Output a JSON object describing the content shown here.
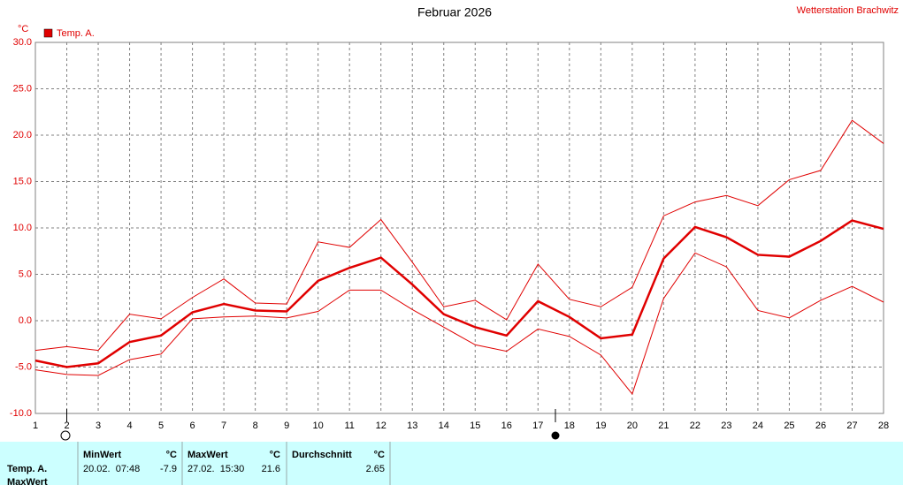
{
  "chart_data": {
    "type": "line",
    "title": "Februar 2026",
    "station": "Wetterstation Brachwitz",
    "unit": "°C",
    "x": [
      1,
      2,
      3,
      4,
      5,
      6,
      7,
      8,
      9,
      10,
      11,
      12,
      13,
      14,
      15,
      16,
      17,
      18,
      19,
      20,
      21,
      22,
      23,
      24,
      25,
      26,
      27,
      28
    ],
    "xlim": [
      1,
      28
    ],
    "xticks": [
      1,
      2,
      3,
      4,
      5,
      6,
      7,
      8,
      9,
      10,
      11,
      12,
      13,
      14,
      15,
      16,
      17,
      18,
      19,
      20,
      21,
      22,
      23,
      24,
      25,
      26,
      27,
      28
    ],
    "ylim": [
      -10,
      30
    ],
    "yticks": [
      {
        "value": -10,
        "label": "-10.0"
      },
      {
        "value": -5,
        "label": "-5.0"
      },
      {
        "value": 0,
        "label": "0.0"
      },
      {
        "value": 5,
        "label": "5.0"
      },
      {
        "value": 10,
        "label": "10.0"
      },
      {
        "value": 15,
        "label": "15.0"
      },
      {
        "value": 20,
        "label": "20.0"
      },
      {
        "value": 25,
        "label": "25.0"
      },
      {
        "value": 30,
        "label": "30.0"
      }
    ],
    "grid": true,
    "series": [
      {
        "name": "Temp. A.",
        "color": "#e00000",
        "values": [
          -4.3,
          -5.0,
          -4.6,
          -2.3,
          -1.6,
          0.9,
          1.8,
          1.1,
          1.0,
          4.3,
          5.7,
          6.8,
          3.9,
          0.7,
          -0.7,
          -1.6,
          2.1,
          0.4,
          -1.9,
          -1.5,
          6.7,
          10.1,
          9.0,
          7.1,
          6.9,
          8.6,
          10.8,
          9.9
        ],
        "max": [
          -3.2,
          -2.8,
          -3.2,
          0.7,
          0.2,
          2.5,
          4.5,
          1.9,
          1.8,
          8.5,
          7.9,
          10.9,
          6.3,
          1.5,
          2.2,
          0.1,
          6.1,
          2.3,
          1.5,
          3.6,
          11.3,
          12.8,
          13.5,
          12.4,
          15.2,
          16.2,
          21.6,
          19.1
        ],
        "min": [
          -5.3,
          -5.8,
          -5.9,
          -4.2,
          -3.6,
          0.2,
          0.4,
          0.5,
          0.3,
          1.0,
          3.3,
          3.3,
          1.2,
          -0.7,
          -2.6,
          -3.3,
          -0.9,
          -1.7,
          -3.7,
          -7.9,
          2.4,
          7.3,
          5.8,
          1.1,
          0.3,
          2.2,
          3.7,
          2.0
        ]
      }
    ]
  },
  "stats_table": {
    "rows": [
      "Temp. A.",
      "MaxWert"
    ],
    "min_header": "MinWert",
    "max_header": "MaxWert",
    "avg_header": "Durchschnitt",
    "unit": "°C",
    "min_time": "20.02.  07:48",
    "min_value": "-7.9",
    "max_time": "27.02.  15:30",
    "max_value": "21.6",
    "avg_value": "2.65"
  }
}
